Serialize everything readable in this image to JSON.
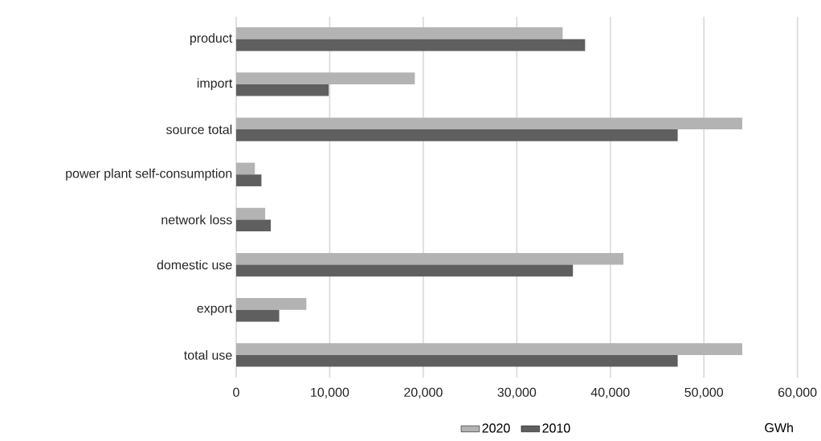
{
  "chart_data": {
    "type": "bar",
    "orientation": "horizontal",
    "categories": [
      "product",
      "import",
      "source total",
      "power plant self-consumption",
      "network loss",
      "domestic use",
      "export",
      "total use"
    ],
    "series": [
      {
        "name": "2020",
        "color": "#b3b3b3",
        "values": [
          34900,
          19100,
          54100,
          2000,
          3100,
          41400,
          7500,
          54100
        ]
      },
      {
        "name": "2010",
        "color": "#5f5f5f",
        "values": [
          37300,
          9900,
          47200,
          2700,
          3700,
          36000,
          4600,
          47200
        ]
      }
    ],
    "xlim": [
      0,
      60000
    ],
    "xticks": [
      0,
      {
        "value": 10000,
        "label": "10,000"
      },
      {
        "value": 20000,
        "label": "20,000"
      },
      {
        "value": 30000,
        "label": "30,000"
      },
      {
        "value": 40000,
        "label": "40,000"
      },
      {
        "value": 50000,
        "label": "50,000"
      },
      {
        "value": 60000,
        "label": "60,000"
      }
    ],
    "xlabel": "GWh",
    "grid": "x",
    "legend": "bottom"
  }
}
